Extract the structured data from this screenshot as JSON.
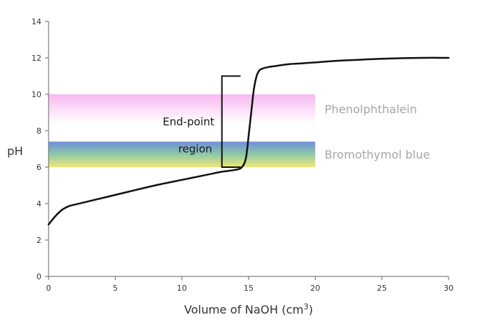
{
  "chart_data": {
    "type": "line",
    "xlabel": "Volume of NaOH (cm",
    "xlabel_superscript": "3",
    "xlabel_suffix": ")",
    "ylabel": "pH",
    "xlim": [
      0,
      30
    ],
    "ylim": [
      0,
      14
    ],
    "x_ticks": [
      "0",
      "5",
      "10",
      "15",
      "20",
      "25",
      "30"
    ],
    "y_ticks": [
      "0",
      "2",
      "4",
      "6",
      "8",
      "10",
      "12",
      "14"
    ],
    "grid": false,
    "series": [
      {
        "x": [
          0,
          0.5,
          1,
          1.5,
          2,
          4,
          6,
          8,
          10,
          12,
          13,
          14,
          14.5,
          14.8,
          15.0,
          15.2,
          15.4,
          15.6,
          15.8,
          16.0,
          16.5,
          17,
          18,
          19,
          20,
          22,
          25,
          28,
          30
        ],
        "y": [
          2.85,
          3.3,
          3.65,
          3.85,
          3.95,
          4.3,
          4.65,
          5.0,
          5.3,
          5.6,
          5.75,
          5.85,
          6.0,
          6.5,
          7.7,
          9.0,
          10.3,
          11.0,
          11.3,
          11.4,
          11.5,
          11.55,
          11.65,
          11.7,
          11.75,
          11.85,
          11.95,
          12.0,
          12.0
        ],
        "color": "#111111"
      }
    ],
    "bands": [
      {
        "label": "Phenolphthalein",
        "x_range": [
          0,
          20
        ],
        "y_range": [
          8.4,
          10.0
        ],
        "colors": [
          "#f7b8f1",
          "#ffffff"
        ]
      },
      {
        "label": "Bromothymol blue",
        "x_range": [
          0,
          20
        ],
        "y_range": [
          6.0,
          7.4
        ],
        "colors": [
          "#6f8fd9",
          "#f2e877"
        ]
      }
    ],
    "annotations": [
      {
        "text": "End-point",
        "x": 10.5,
        "y": 8.5
      },
      {
        "text": "region",
        "x": 11,
        "y": 7.0
      }
    ],
    "bracket": {
      "x": 13,
      "x_tip": 14.4,
      "y_range": [
        6.0,
        11.0
      ]
    }
  }
}
